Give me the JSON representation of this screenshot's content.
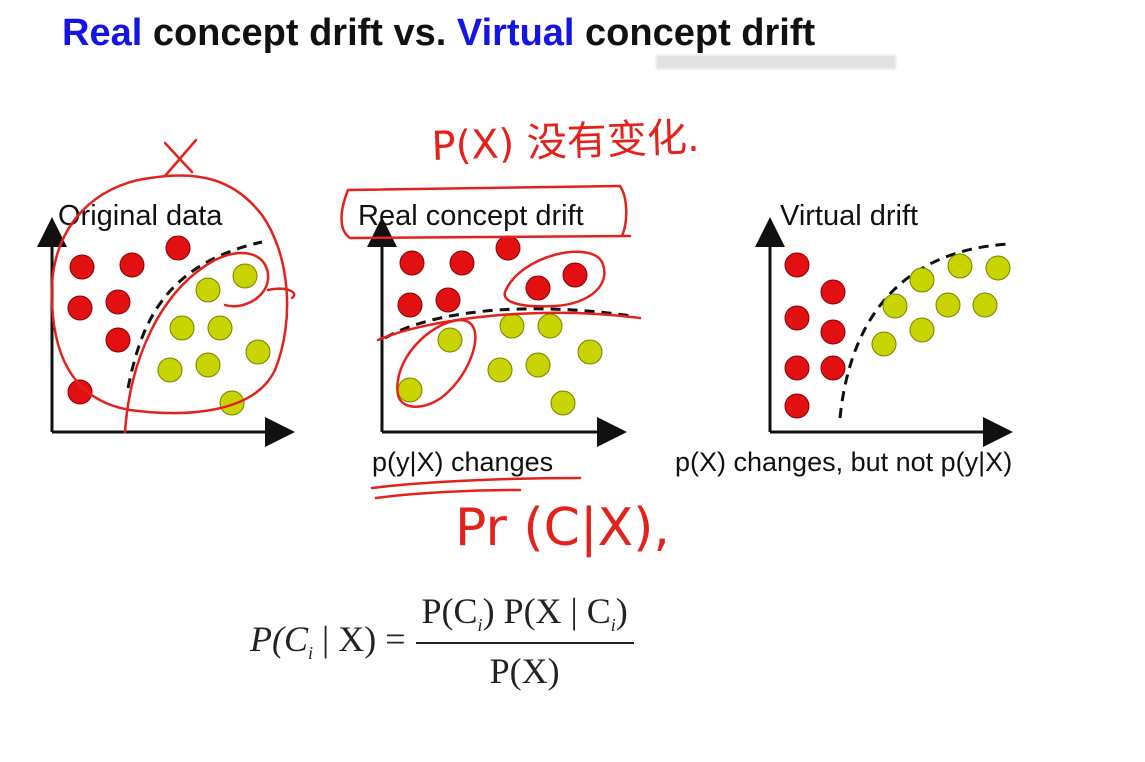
{
  "title": {
    "part1": "Real",
    "part2": " concept drift vs. ",
    "part3": "Virtual",
    "part4": " concept drift"
  },
  "panels": [
    {
      "label": "Original data",
      "caption": ""
    },
    {
      "label": "Real concept drift",
      "caption": "p(y|X) changes"
    },
    {
      "label": "Virtual drift",
      "caption": "p(X) changes, but not p(y|X)"
    }
  ],
  "formula": {
    "lhs": "P(C",
    "lhs_sub": "i",
    "lhs_rest": " | X) =",
    "num_a": "P(C",
    "num_a_sub": "i",
    "num_b": ") P(X | C",
    "num_b_sub": "i",
    "num_c": ")",
    "den": "P(X)"
  },
  "annotations": {
    "handwritten_x": "X",
    "handwritten_top": "P(X) 没有变化.",
    "handwritten_pr": "Pr (C|X),"
  },
  "colors": {
    "title_accent": "#1414e6",
    "class_red": "#e21010",
    "class_yellow": "#c8d400",
    "ink": "#e3221c"
  }
}
